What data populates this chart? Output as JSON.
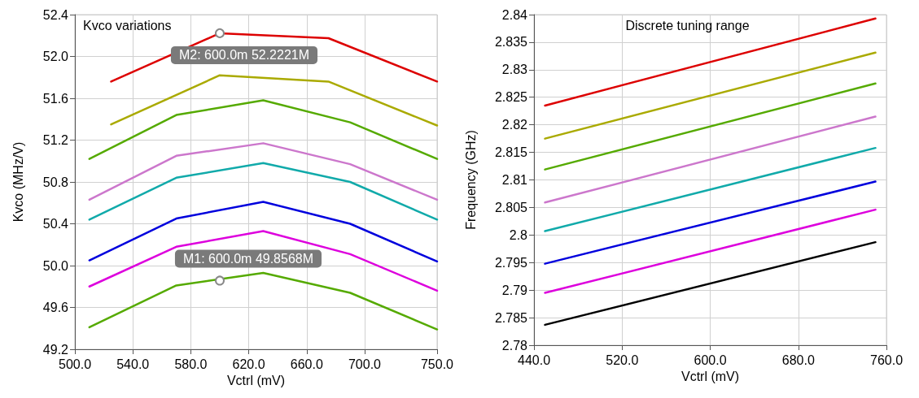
{
  "chart_data": [
    {
      "type": "line",
      "title": "Kvco variations",
      "xlabel": "Vctrl (mV)",
      "ylabel": "Kvco (MHz/V)",
      "xlim": [
        500,
        750
      ],
      "xticks": [
        {
          "value": 500,
          "label": "500.0"
        },
        {
          "value": 540,
          "label": "540.0"
        },
        {
          "value": 580,
          "label": "580.0"
        },
        {
          "value": 620,
          "label": "620.0"
        },
        {
          "value": 660,
          "label": "660.0"
        },
        {
          "value": 700,
          "label": "700.0"
        },
        {
          "value": 750,
          "label": "750.0"
        }
      ],
      "ylim": [
        49.2,
        52.4
      ],
      "yticks": [
        {
          "value": 49.2,
          "label": "49.2"
        },
        {
          "value": 49.6,
          "label": "49.6"
        },
        {
          "value": 50.0,
          "label": "50.0"
        },
        {
          "value": 50.4,
          "label": "50.4"
        },
        {
          "value": 50.8,
          "label": "50.8"
        },
        {
          "value": 51.2,
          "label": "51.2"
        },
        {
          "value": 51.6,
          "label": "51.6"
        },
        {
          "value": 52.0,
          "label": "52.0"
        },
        {
          "value": 52.4,
          "label": "52.4"
        }
      ],
      "grid": true,
      "marker": "none",
      "line_style": "solid",
      "series": [
        {
          "color": "#dd0000",
          "x": [
            525,
            600,
            675,
            750
          ],
          "values": [
            51.76,
            52.2221,
            52.175,
            51.76
          ]
        },
        {
          "color": "#aaaa00",
          "x": [
            525,
            600,
            675,
            750
          ],
          "values": [
            51.35,
            51.82,
            51.76,
            51.34
          ]
        },
        {
          "color": "#55aa00",
          "x": [
            510,
            570,
            630,
            690,
            750
          ],
          "values": [
            51.02,
            51.44,
            51.58,
            51.37,
            51.02
          ]
        },
        {
          "color": "#cc77cc",
          "x": [
            510,
            570,
            630,
            690,
            750
          ],
          "values": [
            50.63,
            51.05,
            51.17,
            50.97,
            50.63
          ]
        },
        {
          "color": "#11aaaa",
          "x": [
            510,
            570,
            630,
            690,
            750
          ],
          "values": [
            50.44,
            50.84,
            50.98,
            50.8,
            50.44
          ]
        },
        {
          "color": "#0000dd",
          "x": [
            510,
            570,
            630,
            690,
            750
          ],
          "values": [
            50.05,
            50.45,
            50.61,
            50.4,
            50.04
          ]
        },
        {
          "color": "#dd00dd",
          "x": [
            510,
            570,
            630,
            690,
            750
          ],
          "values": [
            49.8,
            50.18,
            50.33,
            50.11,
            49.76
          ]
        },
        {
          "color": "#55aa00",
          "x": [
            510,
            570,
            630,
            690,
            750
          ],
          "values": [
            49.41,
            49.81,
            49.93,
            49.74,
            49.39
          ]
        }
      ],
      "annotations": [
        {
          "text": "M2: 600.0m 52.2221M",
          "x": 600,
          "y": 52.2221
        },
        {
          "text": "M1: 600.0m 49.8568M",
          "x": 600,
          "y": 49.8568
        }
      ]
    },
    {
      "type": "line",
      "title": "Discrete tuning range",
      "xlabel": "Vctrl (mV)",
      "ylabel": "Frequency (GHz)",
      "xlim": [
        440,
        760
      ],
      "xticks": [
        {
          "value": 440,
          "label": "440.0"
        },
        {
          "value": 520,
          "label": "520.0"
        },
        {
          "value": 600,
          "label": "600.0"
        },
        {
          "value": 680,
          "label": "680.0"
        },
        {
          "value": 760,
          "label": "760.0"
        }
      ],
      "ylim": [
        2.78,
        2.84
      ],
      "yticks": [
        2.78,
        2.785,
        2.79,
        2.795,
        2.8,
        2.805,
        2.81,
        2.815,
        2.82,
        2.825,
        2.83,
        2.835,
        2.84
      ],
      "grid": true,
      "marker": "none",
      "line_style": "solid",
      "series": [
        {
          "color": "#dd0000",
          "x": [
            450,
            750
          ],
          "values": [
            2.8235,
            2.8393
          ]
        },
        {
          "color": "#aaaa00",
          "x": [
            450,
            750
          ],
          "values": [
            2.8175,
            2.8331
          ]
        },
        {
          "color": "#55aa00",
          "x": [
            450,
            750
          ],
          "values": [
            2.8119,
            2.8275
          ]
        },
        {
          "color": "#cc77cc",
          "x": [
            450,
            750
          ],
          "values": [
            2.8059,
            2.8215
          ]
        },
        {
          "color": "#11aaaa",
          "x": [
            450,
            750
          ],
          "values": [
            2.8007,
            2.8158
          ]
        },
        {
          "color": "#0000dd",
          "x": [
            450,
            750
          ],
          "values": [
            2.7948,
            2.8097
          ]
        },
        {
          "color": "#dd00dd",
          "x": [
            450,
            750
          ],
          "values": [
            2.7895,
            2.8046
          ]
        },
        {
          "color": "#000000",
          "x": [
            450,
            750
          ],
          "values": [
            2.7837,
            2.7987
          ]
        }
      ]
    }
  ]
}
